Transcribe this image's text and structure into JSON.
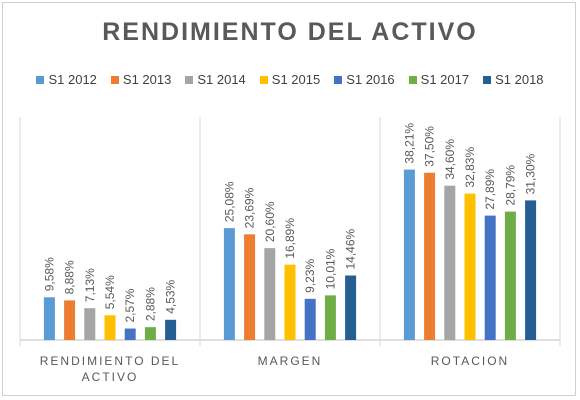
{
  "chart_data": {
    "type": "bar",
    "title": "RENDIMIENTO DEL ACTIVO",
    "categories": [
      "RENDIMIENTO DEL ACTIVO",
      "MARGEN",
      "ROTACION"
    ],
    "category_label_lines": [
      [
        "RENDIMIENTO DEL",
        "ACTIVO"
      ],
      [
        "MARGEN"
      ],
      [
        "ROTACION"
      ]
    ],
    "series": [
      {
        "name": "S1 2012",
        "color": "#5B9BD5",
        "values": [
          9.58,
          25.08,
          38.21
        ],
        "labels": [
          "9,58%",
          "25,08%",
          "38,21%"
        ]
      },
      {
        "name": "S1 2013",
        "color": "#ED7D31",
        "values": [
          8.88,
          23.69,
          37.5
        ],
        "labels": [
          "8,88%",
          "23,69%",
          "37,50%"
        ]
      },
      {
        "name": "S1 2014",
        "color": "#A5A5A5",
        "values": [
          7.13,
          20.6,
          34.6
        ],
        "labels": [
          "7,13%",
          "20,60%",
          "34,60%"
        ]
      },
      {
        "name": "S1 2015",
        "color": "#FFC000",
        "values": [
          5.54,
          16.89,
          32.83
        ],
        "labels": [
          "5,54%",
          "16,89%",
          "32,83%"
        ]
      },
      {
        "name": "S1 2016",
        "color": "#4472C4",
        "values": [
          2.57,
          9.23,
          27.89
        ],
        "labels": [
          "2,57%",
          "9,23%",
          "27,89%"
        ]
      },
      {
        "name": "S1 2017",
        "color": "#70AD47",
        "values": [
          2.88,
          10.01,
          28.79
        ],
        "labels": [
          "2,88%",
          "10,01%",
          "28,79%"
        ]
      },
      {
        "name": "S1 2018",
        "color": "#255E91",
        "values": [
          4.53,
          14.46,
          31.3
        ],
        "labels": [
          "4,53%",
          "14,46%",
          "31,30%"
        ]
      }
    ],
    "ylim": [
      0,
      50
    ],
    "grid": false,
    "legend_position": "top"
  }
}
